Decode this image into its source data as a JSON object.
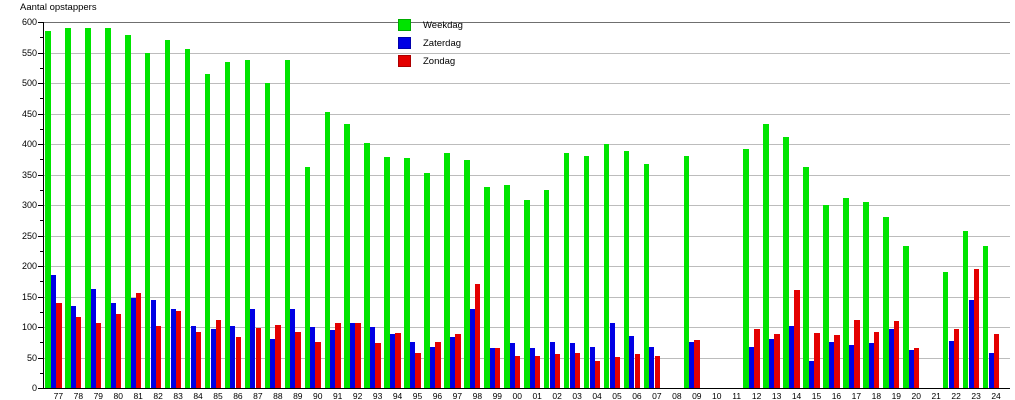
{
  "title": "Aantal opstappers",
  "legend": {
    "items": [
      {
        "label": "Weekdag",
        "color": "#00e400"
      },
      {
        "label": "Zaterdag",
        "color": "#0000e4"
      },
      {
        "label": "Zondag",
        "color": "#e40000"
      }
    ]
  },
  "axes": {
    "y_tick_labels": [
      "0",
      "50",
      "100",
      "150",
      "200",
      "250",
      "300",
      "350",
      "400",
      "450",
      "500",
      "550",
      "600"
    ]
  },
  "chart_data": {
    "type": "bar",
    "title": "Aantal opstappers",
    "ylabel": "Aantal opstappers",
    "xlabel": "",
    "ylim": [
      0,
      600
    ],
    "ytick_step": 50,
    "grid": true,
    "legend_position": "top-center",
    "categories": [
      "77",
      "78",
      "79",
      "80",
      "81",
      "82",
      "83",
      "84",
      "85",
      "86",
      "87",
      "88",
      "89",
      "90",
      "91",
      "92",
      "93",
      "94",
      "95",
      "96",
      "97",
      "98",
      "99",
      "00",
      "01",
      "02",
      "03",
      "04",
      "05",
      "06",
      "07",
      "08",
      "09",
      "10",
      "11",
      "12",
      "13",
      "14",
      "15",
      "16",
      "17",
      "18",
      "19",
      "20",
      "21",
      "22",
      "23",
      "24"
    ],
    "series": [
      {
        "name": "Weekdag",
        "color": "#00e400",
        "values": [
          585,
          590,
          590,
          590,
          578,
          550,
          570,
          555,
          515,
          535,
          537,
          500,
          538,
          363,
          452,
          432,
          402,
          378,
          377,
          353,
          386,
          374,
          330,
          333,
          308,
          325,
          385,
          380,
          400,
          389,
          368,
          null,
          380,
          null,
          null,
          391,
          433,
          411,
          362,
          300,
          312,
          305,
          280,
          232,
          null,
          190,
          257,
          232
        ]
      },
      {
        "name": "Zaterdag",
        "color": "#0000e4",
        "values": [
          186,
          135,
          162,
          140,
          148,
          145,
          130,
          102,
          97,
          102,
          130,
          80,
          130,
          100,
          95,
          106,
          100,
          88,
          75,
          67,
          84,
          130,
          66,
          74,
          65,
          75,
          73,
          68,
          107,
          85,
          68,
          null,
          75,
          null,
          null,
          67,
          80,
          101,
          45,
          75,
          70,
          73,
          97,
          62,
          null,
          77,
          145,
          57
        ]
      },
      {
        "name": "Zondag",
        "color": "#e40000",
        "values": [
          140,
          117,
          106,
          122,
          155,
          102,
          126,
          92,
          111,
          84,
          98,
          103,
          92,
          75,
          107,
          107,
          73,
          90,
          57,
          75,
          88,
          170,
          66,
          52,
          53,
          55,
          58,
          45,
          51,
          55,
          53,
          null,
          79,
          null,
          null,
          96,
          88,
          160,
          90,
          87,
          112,
          92,
          110,
          65,
          null,
          97,
          195,
          88
        ]
      }
    ]
  }
}
